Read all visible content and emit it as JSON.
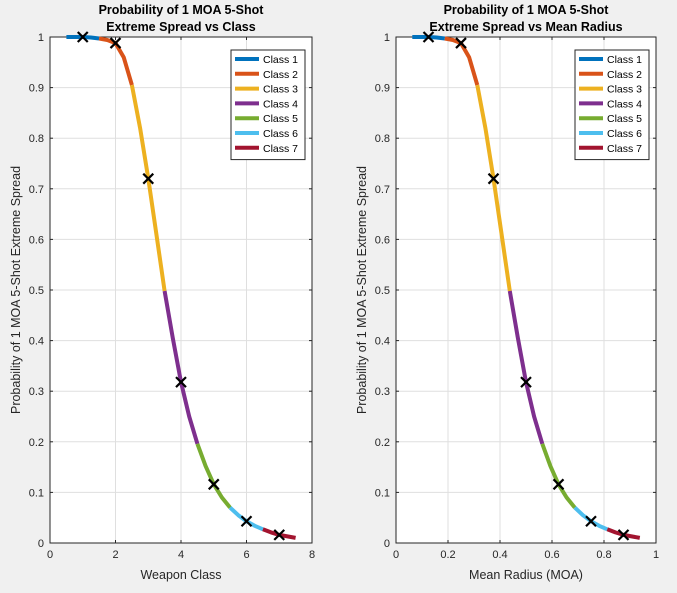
{
  "chart_data": [
    {
      "type": "line",
      "title": [
        "Probability of 1 MOA 5-Shot",
        "Extreme Spread vs Class"
      ],
      "xlabel": "Weapon Class",
      "ylabel": "Probability of 1 MOA 5-Shot Extreme Spread",
      "xlim": [
        0,
        8
      ],
      "ylim": [
        0,
        1
      ],
      "xticks": [
        0,
        2,
        4,
        6,
        8
      ],
      "yticks": [
        0,
        0.1,
        0.2,
        0.3,
        0.4,
        0.5,
        0.6,
        0.7,
        0.8,
        0.9,
        1
      ],
      "grid": true,
      "legend_position": "top-right",
      "series": [
        {
          "name": "Class 1",
          "color": "#0072bd",
          "x": [
            0.5,
            0.75,
            1.0,
            1.25,
            1.5
          ],
          "y": [
            1.0,
            1.0,
            1.0,
            0.999,
            0.997
          ]
        },
        {
          "name": "Class 2",
          "color": "#d95319",
          "x": [
            1.5,
            1.75,
            2.0,
            2.25,
            2.5
          ],
          "y": [
            0.997,
            0.994,
            0.988,
            0.96,
            0.905
          ]
        },
        {
          "name": "Class 3",
          "color": "#edb120",
          "x": [
            2.5,
            2.75,
            3.0,
            3.25,
            3.5
          ],
          "y": [
            0.905,
            0.82,
            0.72,
            0.61,
            0.498
          ]
        },
        {
          "name": "Class 4",
          "color": "#7e2f8e",
          "x": [
            3.5,
            3.75,
            4.0,
            4.25,
            4.5
          ],
          "y": [
            0.498,
            0.405,
            0.318,
            0.25,
            0.196
          ]
        },
        {
          "name": "Class 5",
          "color": "#77ac30",
          "x": [
            4.5,
            4.75,
            5.0,
            5.25,
            5.5
          ],
          "y": [
            0.196,
            0.152,
            0.116,
            0.09,
            0.07
          ]
        },
        {
          "name": "Class 6",
          "color": "#4dbeee",
          "x": [
            5.5,
            5.75,
            6.0,
            6.25,
            6.5
          ],
          "y": [
            0.07,
            0.055,
            0.043,
            0.034,
            0.027
          ]
        },
        {
          "name": "Class 7",
          "color": "#a2142f",
          "x": [
            6.5,
            6.75,
            7.0,
            7.25,
            7.5
          ],
          "y": [
            0.027,
            0.021,
            0.016,
            0.013,
            0.01
          ]
        }
      ],
      "markers": {
        "x": [
          1,
          2,
          3,
          4,
          5,
          6,
          7
        ],
        "y": [
          1.0,
          0.988,
          0.72,
          0.318,
          0.116,
          0.043,
          0.016
        ]
      }
    },
    {
      "type": "line",
      "title": [
        "Probability of 1 MOA 5-Shot",
        "Extreme Spread vs Mean Radius"
      ],
      "xlabel": "Mean Radius (MOA)",
      "ylabel": "Probability of 1 MOA 5-Shot Extreme Spread",
      "xlim": [
        0,
        1
      ],
      "ylim": [
        0,
        1
      ],
      "xticks": [
        0,
        0.2,
        0.4,
        0.6,
        0.8,
        1
      ],
      "yticks": [
        0,
        0.1,
        0.2,
        0.3,
        0.4,
        0.5,
        0.6,
        0.7,
        0.8,
        0.9,
        1
      ],
      "grid": true,
      "legend_position": "top-right",
      "series": [
        {
          "name": "Class 1",
          "color": "#0072bd",
          "x": [
            0.0625,
            0.09375,
            0.125,
            0.15625,
            0.1875
          ],
          "y": [
            1.0,
            1.0,
            1.0,
            0.999,
            0.997
          ]
        },
        {
          "name": "Class 2",
          "color": "#d95319",
          "x": [
            0.1875,
            0.21875,
            0.25,
            0.28125,
            0.3125
          ],
          "y": [
            0.997,
            0.994,
            0.988,
            0.96,
            0.905
          ]
        },
        {
          "name": "Class 3",
          "color": "#edb120",
          "x": [
            0.3125,
            0.34375,
            0.375,
            0.40625,
            0.4375
          ],
          "y": [
            0.905,
            0.82,
            0.72,
            0.61,
            0.498
          ]
        },
        {
          "name": "Class 4",
          "color": "#7e2f8e",
          "x": [
            0.4375,
            0.46875,
            0.5,
            0.53125,
            0.5625
          ],
          "y": [
            0.498,
            0.405,
            0.318,
            0.25,
            0.196
          ]
        },
        {
          "name": "Class 5",
          "color": "#77ac30",
          "x": [
            0.5625,
            0.59375,
            0.625,
            0.65625,
            0.6875
          ],
          "y": [
            0.196,
            0.152,
            0.116,
            0.09,
            0.07
          ]
        },
        {
          "name": "Class 6",
          "color": "#4dbeee",
          "x": [
            0.6875,
            0.71875,
            0.75,
            0.78125,
            0.8125
          ],
          "y": [
            0.07,
            0.055,
            0.043,
            0.034,
            0.027
          ]
        },
        {
          "name": "Class 7",
          "color": "#a2142f",
          "x": [
            0.8125,
            0.84375,
            0.875,
            0.90625,
            0.9375
          ],
          "y": [
            0.027,
            0.021,
            0.016,
            0.013,
            0.01
          ]
        }
      ],
      "markers": {
        "x": [
          0.125,
          0.25,
          0.375,
          0.5,
          0.625,
          0.75,
          0.875
        ],
        "y": [
          1.0,
          0.988,
          0.72,
          0.318,
          0.116,
          0.043,
          0.016
        ]
      }
    }
  ]
}
